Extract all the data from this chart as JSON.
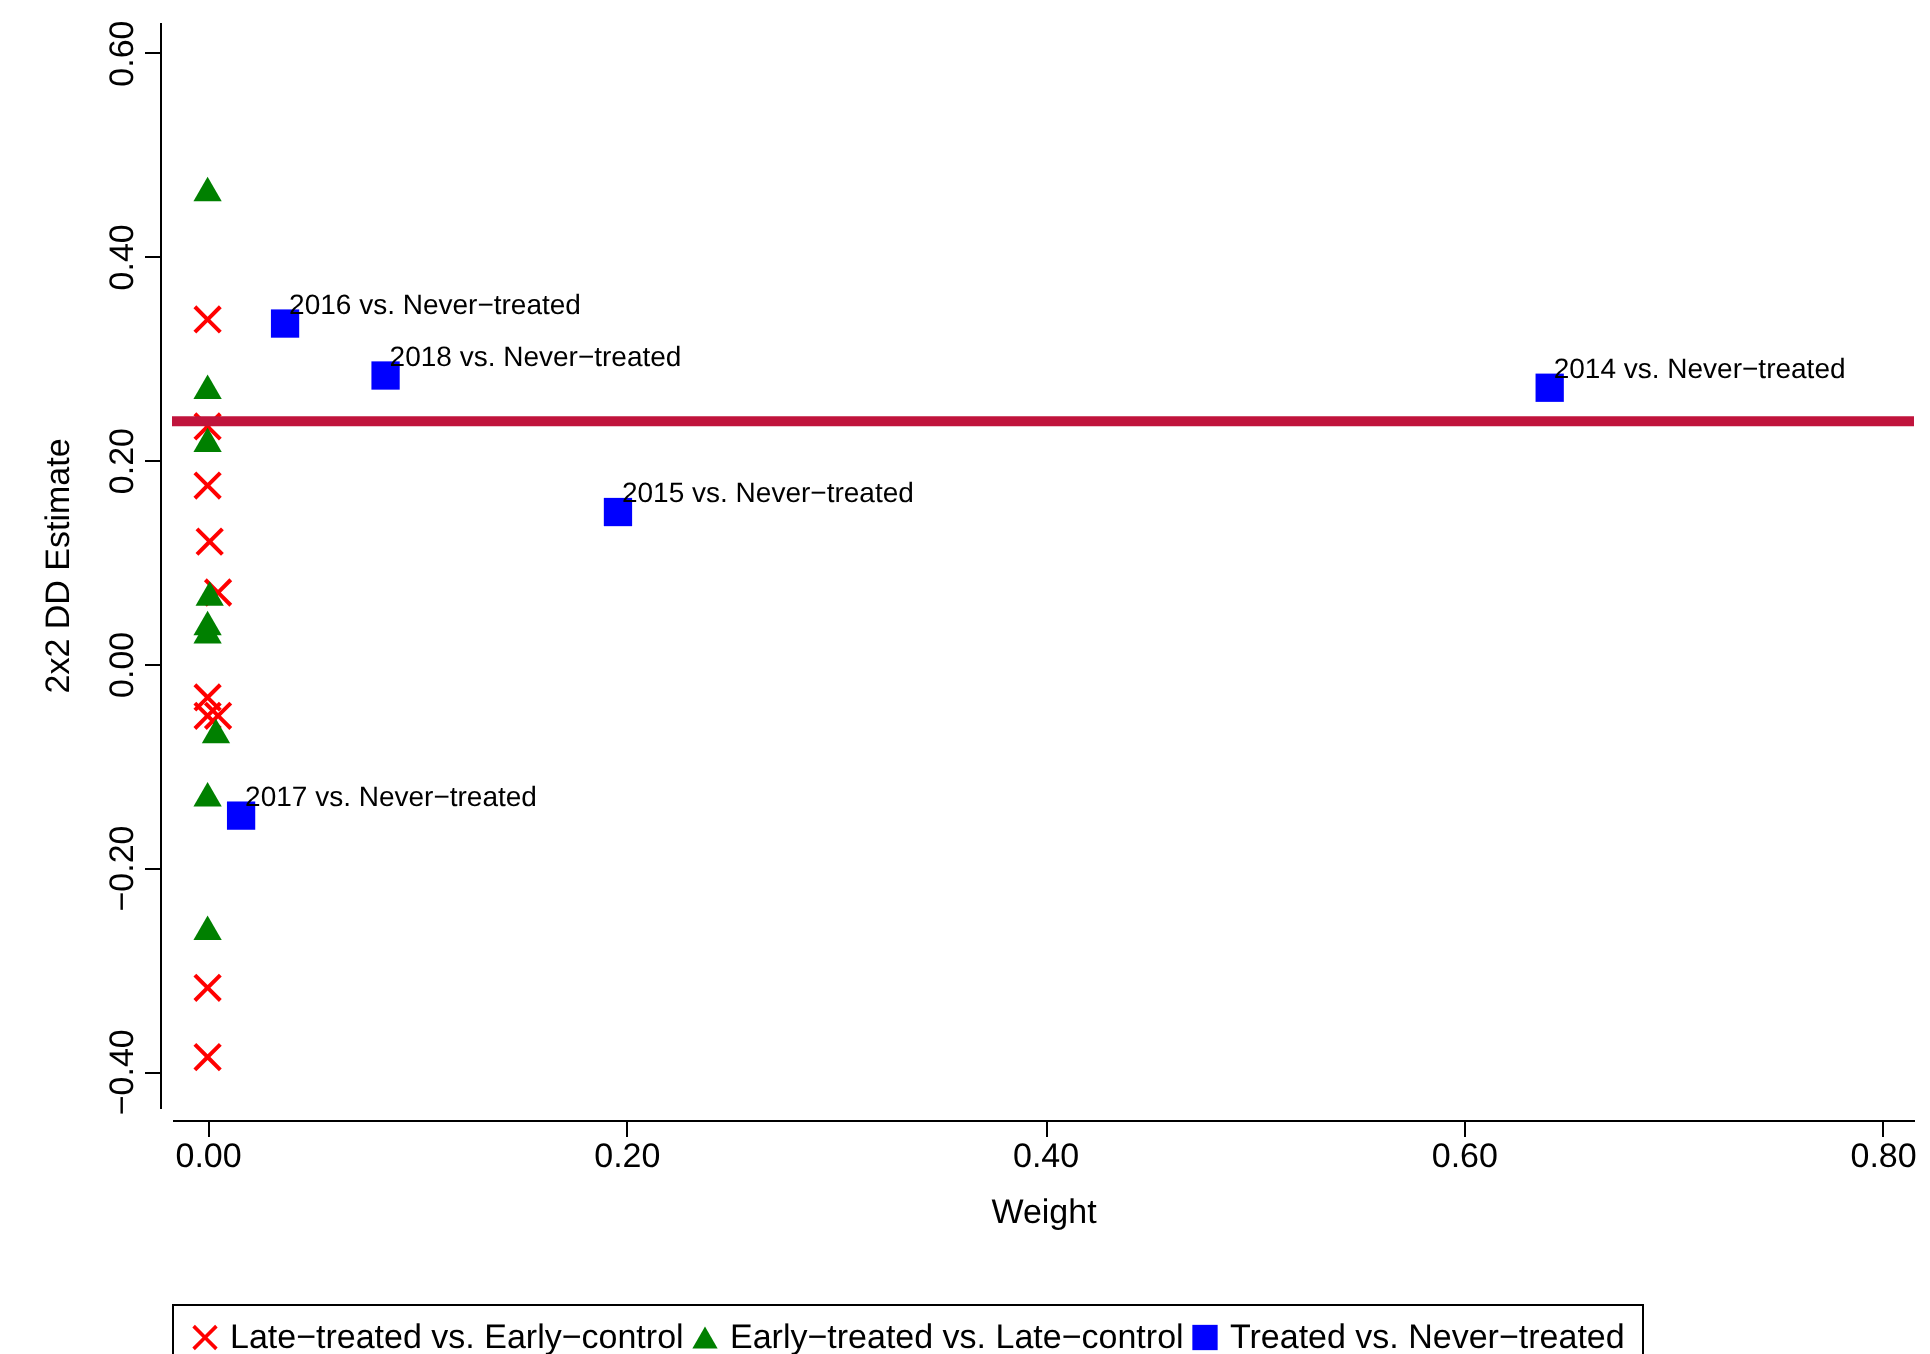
{
  "chart_data": {
    "type": "scatter",
    "xlabel": "Weight",
    "ylabel": "2x2 DD Estimate",
    "xlim": [
      -0.017,
      0.815
    ],
    "ylim": [
      -0.436,
      0.63
    ],
    "xticks": [
      {
        "value": 0,
        "label": "0.00"
      },
      {
        "value": 0.2,
        "label": "0.20"
      },
      {
        "value": 0.4,
        "label": "0.40"
      },
      {
        "value": 0.6,
        "label": "0.60"
      },
      {
        "value": 0.8,
        "label": "0.80"
      }
    ],
    "yticks": [
      {
        "value": -0.4,
        "label": "−0.40"
      },
      {
        "value": -0.2,
        "label": "−0.20"
      },
      {
        "value": 0,
        "label": "0.00"
      },
      {
        "value": 0.2,
        "label": "0.20"
      },
      {
        "value": 0.4,
        "label": "0.40"
      },
      {
        "value": 0.6,
        "label": "0.60"
      }
    ],
    "grid": false,
    "legend": "bottom",
    "series": [
      {
        "name": "Late−treated vs. Early−control",
        "color": "#ff0000",
        "marker": "cross",
        "x": [
          0,
          0,
          0,
          0.001,
          0.005,
          0,
          0,
          0.005,
          0,
          0
        ],
        "values": [
          0.338,
          0.233,
          0.175,
          0.12,
          0.07,
          -0.033,
          -0.051,
          -0.051,
          -0.318,
          -0.386
        ]
      },
      {
        "name": "Early−treated vs. Late−control",
        "color": "#008000",
        "marker": "triangle",
        "x": [
          0,
          0,
          0,
          0.001,
          0,
          0,
          0.004,
          0,
          0
        ],
        "values": [
          0.466,
          0.272,
          0.22,
          0.069,
          0.04,
          0.032,
          -0.066,
          -0.128,
          -0.259
        ]
      },
      {
        "name": "Treated vs. Never−treated",
        "color": "#0000ff",
        "marker": "square",
        "x": [
          0.037,
          0.085,
          0.641,
          0.196,
          0.016
        ],
        "values": [
          0.334,
          0.283,
          0.271,
          0.149,
          -0.149
        ]
      }
    ],
    "ref_lines": [
      {
        "axis": "y",
        "value": 0.238,
        "color": "#c0143c"
      }
    ],
    "annotations": [
      {
        "text": "2016 vs. Never−treated",
        "x": 0.037,
        "y": 0.334
      },
      {
        "text": "2018 vs. Never−treated",
        "x": 0.085,
        "y": 0.283
      },
      {
        "text": "2014 vs. Never−treated",
        "x": 0.641,
        "y": 0.271
      },
      {
        "text": "2015 vs. Never−treated",
        "x": 0.196,
        "y": 0.149
      },
      {
        "text": "2017 vs. Never−treated",
        "x": 0.016,
        "y": -0.149
      }
    ]
  }
}
